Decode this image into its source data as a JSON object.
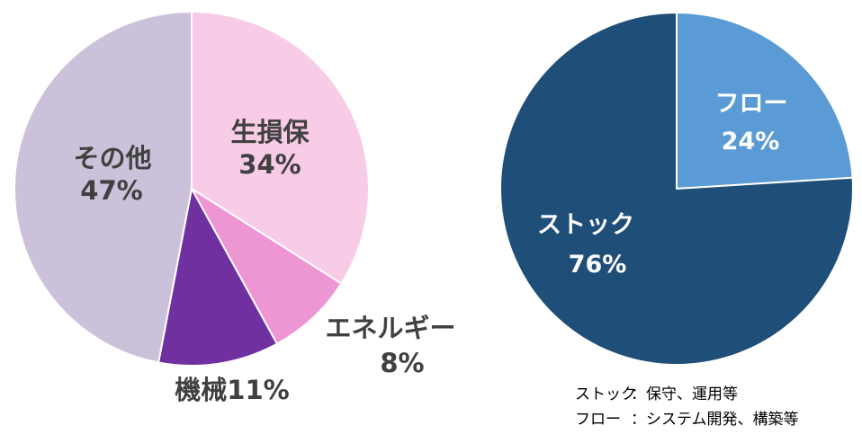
{
  "chart_data": [
    {
      "type": "pie",
      "categories": [
        "生損保",
        "エネルギー",
        "機械",
        "その他"
      ],
      "values": [
        34,
        8,
        11,
        47
      ],
      "value_labels": [
        "34%",
        "8%",
        "11%",
        "47%"
      ],
      "colors": [
        "#F8CBE6",
        "#EE95D4",
        "#7030A0",
        "#CCC1DB"
      ],
      "label_color": "#404040"
    },
    {
      "type": "pie",
      "categories": [
        "フロー",
        "ストック"
      ],
      "values": [
        24,
        76
      ],
      "value_labels": [
        "24%",
        "76%"
      ],
      "colors": [
        "#5B9BD5",
        "#1F4E79"
      ],
      "label_color": "#FFFFFF"
    }
  ],
  "notes": [
    {
      "term": "ストック",
      "description": "：保守、運用等"
    },
    {
      "term": "フロー",
      "description": "：システム開発、構築等"
    }
  ]
}
